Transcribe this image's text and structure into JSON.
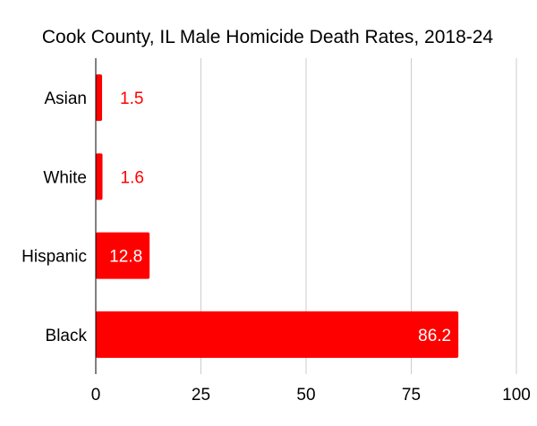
{
  "chart_data": {
    "type": "bar",
    "orientation": "horizontal",
    "title": "Cook County, IL Male Homicide Death Rates, 2018-24",
    "xlabel": "",
    "ylabel": "",
    "categories": [
      "Asian",
      "White",
      "Hispanic",
      "Black"
    ],
    "values": [
      1.5,
      1.6,
      12.8,
      86.2
    ],
    "value_labels": [
      "1.5",
      "1.6",
      "12.8",
      "86.2"
    ],
    "xlim": [
      0,
      100
    ],
    "x_ticks": [
      0,
      25,
      50,
      75,
      100
    ],
    "x_tick_labels": [
      "0",
      "25",
      "50",
      "75",
      "100"
    ],
    "grid": "vertical",
    "legend": "none",
    "bar_color": "#ff0000",
    "label_color_outside": "#ff0000",
    "label_color_inside": "#ffffff",
    "gridline_color": "#cccccc",
    "axis_color": "#000000"
  }
}
